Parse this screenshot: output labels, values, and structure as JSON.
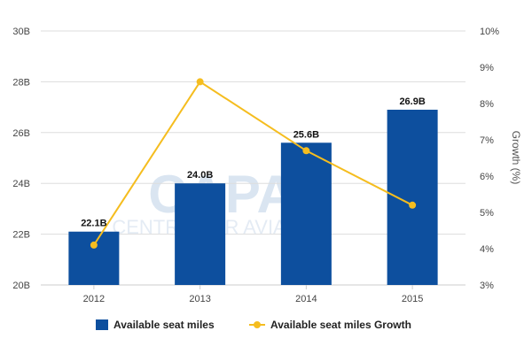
{
  "chart_data": {
    "type": "bar",
    "categories": [
      "2012",
      "2013",
      "2014",
      "2015"
    ],
    "series": [
      {
        "name": "Available seat miles",
        "type": "bar",
        "axis": "left",
        "values": [
          22.1,
          24.0,
          25.6,
          26.9
        ],
        "data_labels": [
          "22.1B",
          "24.0B",
          "25.6B",
          "26.9B"
        ]
      },
      {
        "name": "Available seat miles Growth",
        "type": "line",
        "axis": "right",
        "values": [
          4.1,
          8.6,
          6.7,
          5.2
        ]
      }
    ],
    "left_axis": {
      "ylim": [
        20,
        30
      ],
      "ticks": [
        20,
        22,
        24,
        26,
        28,
        30
      ],
      "tick_labels": [
        "20B",
        "22B",
        "24B",
        "26B",
        "28B",
        "30B"
      ]
    },
    "right_axis": {
      "label": "Growth (%)",
      "ylim": [
        3,
        10
      ],
      "ticks": [
        3,
        4,
        5,
        6,
        7,
        8,
        9,
        10
      ],
      "tick_labels": [
        "3%",
        "4%",
        "5%",
        "6%",
        "7%",
        "8%",
        "9%",
        "10%"
      ]
    },
    "grid": true,
    "legend_position": "bottom",
    "watermark": "CAPA CENTRE FOR AVIATION",
    "colors": {
      "bar": "#0d4f9e",
      "line": "#f5bd1f",
      "grid": "#dddddd",
      "axis": "#cccccc"
    }
  }
}
